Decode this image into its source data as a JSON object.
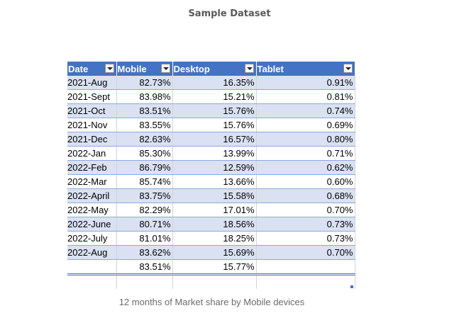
{
  "title": "Sample Dataset",
  "caption": "12 months of Market share by Mobile devices",
  "table": {
    "headers": [
      "Date",
      "Mobile",
      "Desktop",
      "Tablet"
    ],
    "rows": [
      [
        "2021-Aug",
        "82.73%",
        "16.35%",
        "0.91%"
      ],
      [
        "2021-Sept",
        "83.98%",
        "15.21%",
        "0.81%"
      ],
      [
        "2021-Oct",
        "83.51%",
        "15.76%",
        "0.74%"
      ],
      [
        "2021-Nov",
        "83.55%",
        "15.76%",
        "0.69%"
      ],
      [
        "2021-Dec",
        "82.63%",
        "16.57%",
        "0.80%"
      ],
      [
        "2022-Jan",
        "85.30%",
        "13.99%",
        "0.71%"
      ],
      [
        "2022-Feb",
        "86.79%",
        "12.59%",
        "0.62%"
      ],
      [
        "2022-Mar",
        "85.74%",
        "13.66%",
        "0.60%"
      ],
      [
        "2022-April",
        "83.75%",
        "15.58%",
        "0.68%"
      ],
      [
        "2022-May",
        "82.29%",
        "17.01%",
        "0.70%"
      ],
      [
        "2022-June",
        "80.71%",
        "18.56%",
        "0.73%"
      ],
      [
        "2022-July",
        "81.01%",
        "18.25%",
        "0.73%"
      ],
      [
        "2022-Aug",
        "83.62%",
        "15.69%",
        "0.70%"
      ]
    ],
    "totals": [
      "",
      "83.51%",
      "15.77%",
      ""
    ]
  },
  "colors": {
    "header_bg": "#4472c4",
    "band_bg": "#d9e1f2",
    "title_text": "#595959",
    "caption_text": "#6b6b6b"
  },
  "icons": {
    "filter": "filter-dropdown-icon",
    "resize": "resize-handle-icon"
  }
}
